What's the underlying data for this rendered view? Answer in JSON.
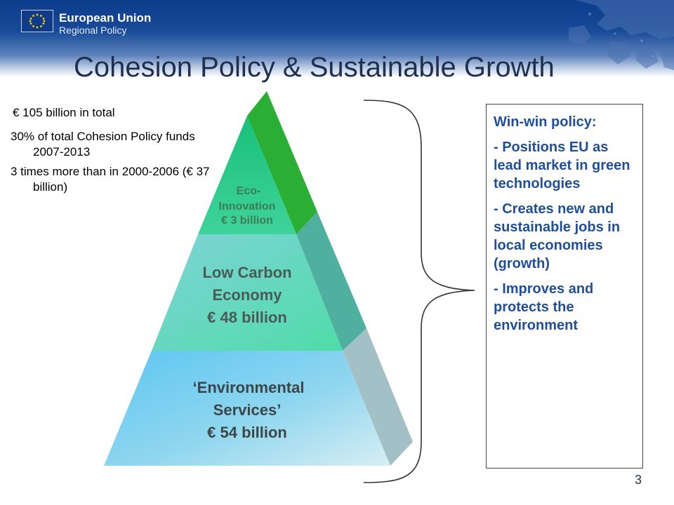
{
  "header": {
    "brand_line1": "European Union",
    "brand_line2": "Regional Policy"
  },
  "title": "Cohesion Policy & Sustainable Growth",
  "stats": [
    "€ 105 billion in total",
    "30% of total Cohesion Policy funds 2007-2013",
    "3 times more than in 2000-2006 (€ 37 billion)"
  ],
  "pyramid": {
    "top": {
      "line1": "Eco-",
      "line2": "Innovation",
      "line3": "€ 3 billion"
    },
    "middle": {
      "line1": "Low Carbon",
      "line2": "Economy",
      "line3": "€ 48 billion"
    },
    "bottom": {
      "line1": "‘Environmental",
      "line2": "Services’",
      "line3": "€ 54 billion"
    }
  },
  "textbox": {
    "heading": "Win-win policy:",
    "points": [
      "- Positions EU as lead market in green technologies",
      "- Creates new and sustainable jobs in local economies (growth)",
      "- Improves and protects the environment"
    ]
  },
  "page_number": "3",
  "colors": {
    "header_blue": "#0c3c8c",
    "title_text": "#1f2f4f",
    "textbox_text": "#1f4e9b",
    "tier_top": "#1fc87a",
    "tier_middle": "#62d6c8",
    "tier_bottom": "#6ecaf0"
  }
}
